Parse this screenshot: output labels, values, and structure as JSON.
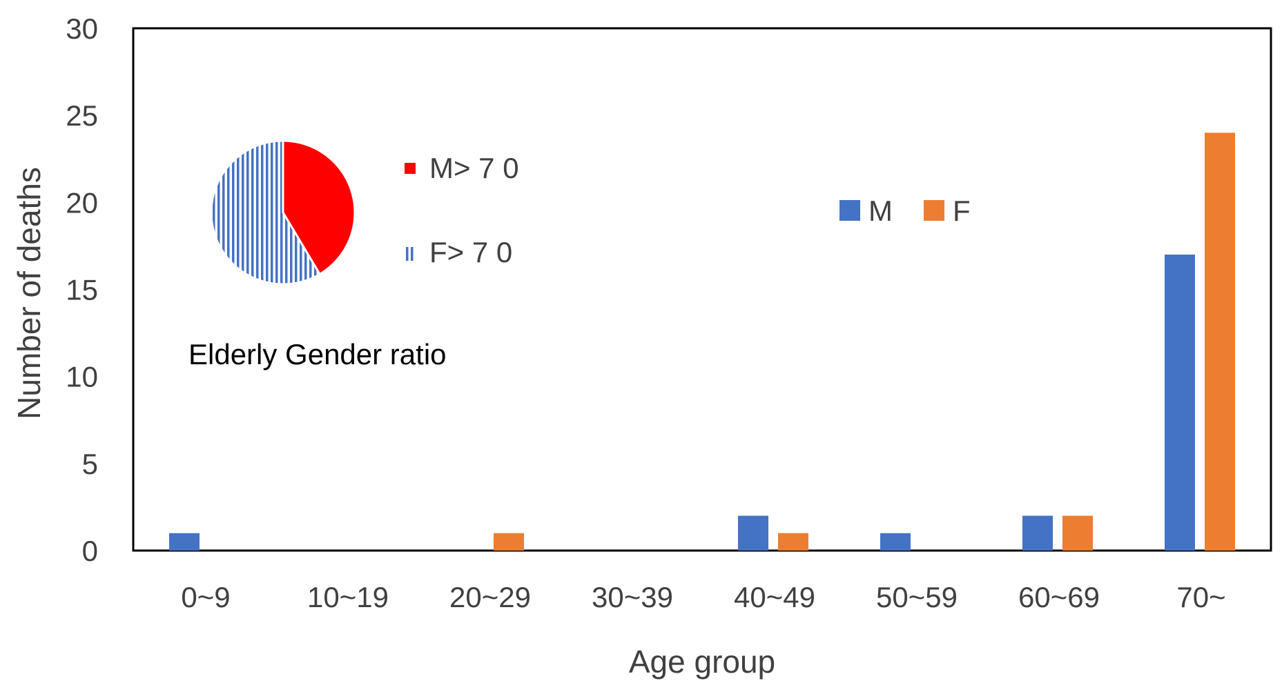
{
  "chart_data": [
    {
      "type": "bar",
      "xlabel": "Age group",
      "ylabel": "Number of deaths",
      "ylim": [
        0,
        30
      ],
      "yticks": [
        "0",
        "5",
        "10",
        "15",
        "20",
        "25",
        "30"
      ],
      "categories": [
        "0~9",
        "10~19",
        "20~29",
        "30~39",
        "40~49",
        "50~59",
        "60~69",
        "70~"
      ],
      "series": [
        {
          "name": "M",
          "color": "#4472C4",
          "values": [
            1,
            0,
            0,
            0,
            2,
            1,
            2,
            17
          ]
        },
        {
          "name": "F",
          "color": "#ED7D31",
          "values": [
            0,
            0,
            1,
            0,
            1,
            0,
            2,
            24
          ]
        }
      ],
      "legend_position": "upper-center",
      "grid": false
    },
    {
      "type": "pie",
      "title": "Elderly Gender ratio",
      "labels": [
        "M> 7 0",
        "F> 7 0"
      ],
      "values": [
        17,
        24
      ],
      "colors": [
        "#FF0000",
        "#4472C4"
      ],
      "legend_position": "right"
    }
  ]
}
